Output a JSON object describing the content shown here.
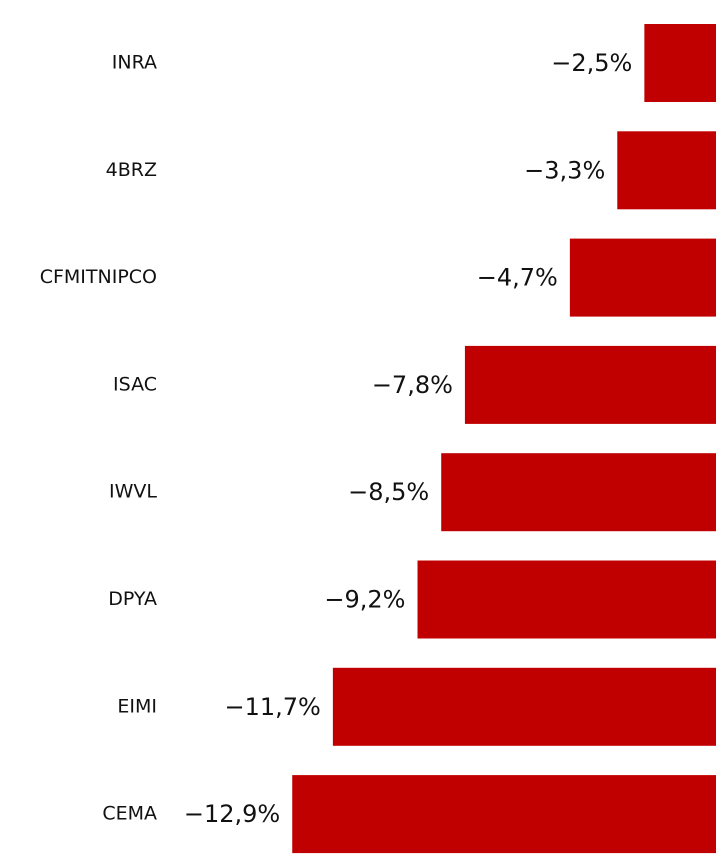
{
  "chart_data": {
    "type": "hbar",
    "categories": [
      "INRA",
      "4BRZ",
      "CFMITNIPCO",
      "ISAC",
      "IWVL",
      "DPYA",
      "EIMI",
      "CEMA"
    ],
    "values": [
      -2.5,
      -3.3,
      -4.7,
      -7.8,
      -8.5,
      -9.2,
      -11.7,
      -12.9
    ],
    "value_labels": [
      "−2,5%",
      "−3,3%",
      "−4,7%",
      "−7,8%",
      "−8,5%",
      "−9,2%",
      "−11,7%",
      "−12,9%"
    ],
    "color": "#c00000",
    "xlim": [
      -14,
      0
    ]
  }
}
